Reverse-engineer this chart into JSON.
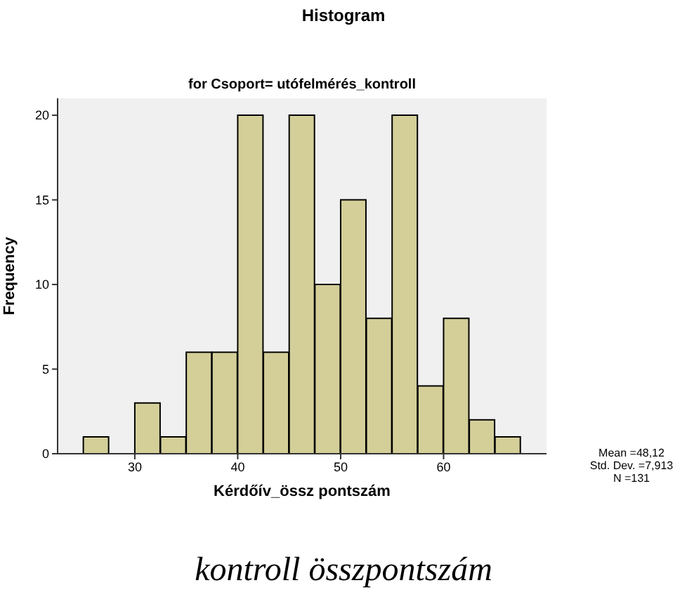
{
  "chart_data": {
    "type": "histogram",
    "title": "Histogram",
    "subtitle": "for Csoport= utófelmérés_kontroll",
    "xlabel": "Kérdőív_össz pontszám",
    "ylabel": "Frequency",
    "bins": [
      25,
      27.5,
      30,
      32.5,
      35,
      37.5,
      40,
      42.5,
      45,
      47.5,
      50,
      52.5,
      55,
      57.5,
      60,
      62.5,
      65,
      67.5
    ],
    "values": [
      1,
      0,
      3,
      1,
      6,
      6,
      20,
      6,
      20,
      10,
      15,
      8,
      20,
      4,
      8,
      2,
      1
    ],
    "color": "#d4cf99",
    "xlim": [
      22.5,
      70
    ],
    "xticks": [
      30,
      40,
      50,
      60
    ],
    "ylim": [
      0,
      21
    ],
    "yticks": [
      0,
      5,
      10,
      15,
      20
    ],
    "grid": false,
    "legend": false,
    "annotations": [
      "Mean =48,12",
      "Std. Dev. =7,913",
      "N =131",
      "kontroll összpontszám"
    ]
  }
}
